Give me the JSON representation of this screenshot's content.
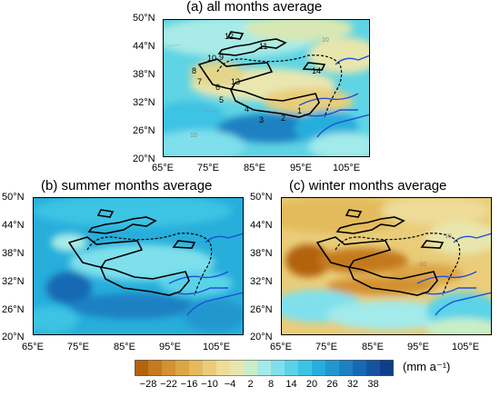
{
  "panels": {
    "a": {
      "title": "(a) all months average"
    },
    "b": {
      "title": "(b) summer months average"
    },
    "c": {
      "title": "(c) winter months average"
    }
  },
  "axes": {
    "top_lat": [
      "50°N",
      "44°N",
      "38°N",
      "32°N",
      "26°N",
      "20°N"
    ],
    "top_lon": [
      "65°E",
      "75°E",
      "85°E",
      "95°E",
      "105°E"
    ],
    "bl_lat": [
      "50°N",
      "44°N",
      "38°N",
      "32°N",
      "26°N",
      "20°N"
    ],
    "bl_lon": [
      "65°E",
      "75°E",
      "85°E",
      "95°E",
      "105°E"
    ],
    "br_lat": [
      "50°N",
      "44°N",
      "38°N",
      "32°N",
      "26°N",
      "20°N"
    ],
    "br_lon": [
      "65°E",
      "75°E",
      "85°E",
      "95°E",
      "105°E"
    ]
  },
  "regions": [
    "1",
    "2",
    "3",
    "4",
    "5",
    "6",
    "7",
    "8",
    "9",
    "10",
    "11",
    "12",
    "13",
    "14"
  ],
  "colorbar": {
    "labels": [
      "−28",
      "−22",
      "−16",
      "−10",
      "−4",
      "2",
      "8",
      "14",
      "20",
      "26",
      "32",
      "38"
    ],
    "unit": "(mm a⁻¹)",
    "colors": [
      "#b3620e",
      "#c47a1f",
      "#d39131",
      "#dca645",
      "#e3bb5c",
      "#e9cd7a",
      "#eedc98",
      "#e8e6ad",
      "#c9eec8",
      "#a3eaea",
      "#7fe0ec",
      "#5ad3e8",
      "#3cc3e3",
      "#27aedb",
      "#2197cf",
      "#1c80c2",
      "#1769b2",
      "#13539f",
      "#0e3e89"
    ]
  },
  "overlay_labels": {
    "a": [
      "10",
      "10"
    ],
    "c": [
      "10",
      "-10"
    ]
  },
  "colors": {
    "river": "#1f4fd8",
    "outline": "#000000"
  }
}
